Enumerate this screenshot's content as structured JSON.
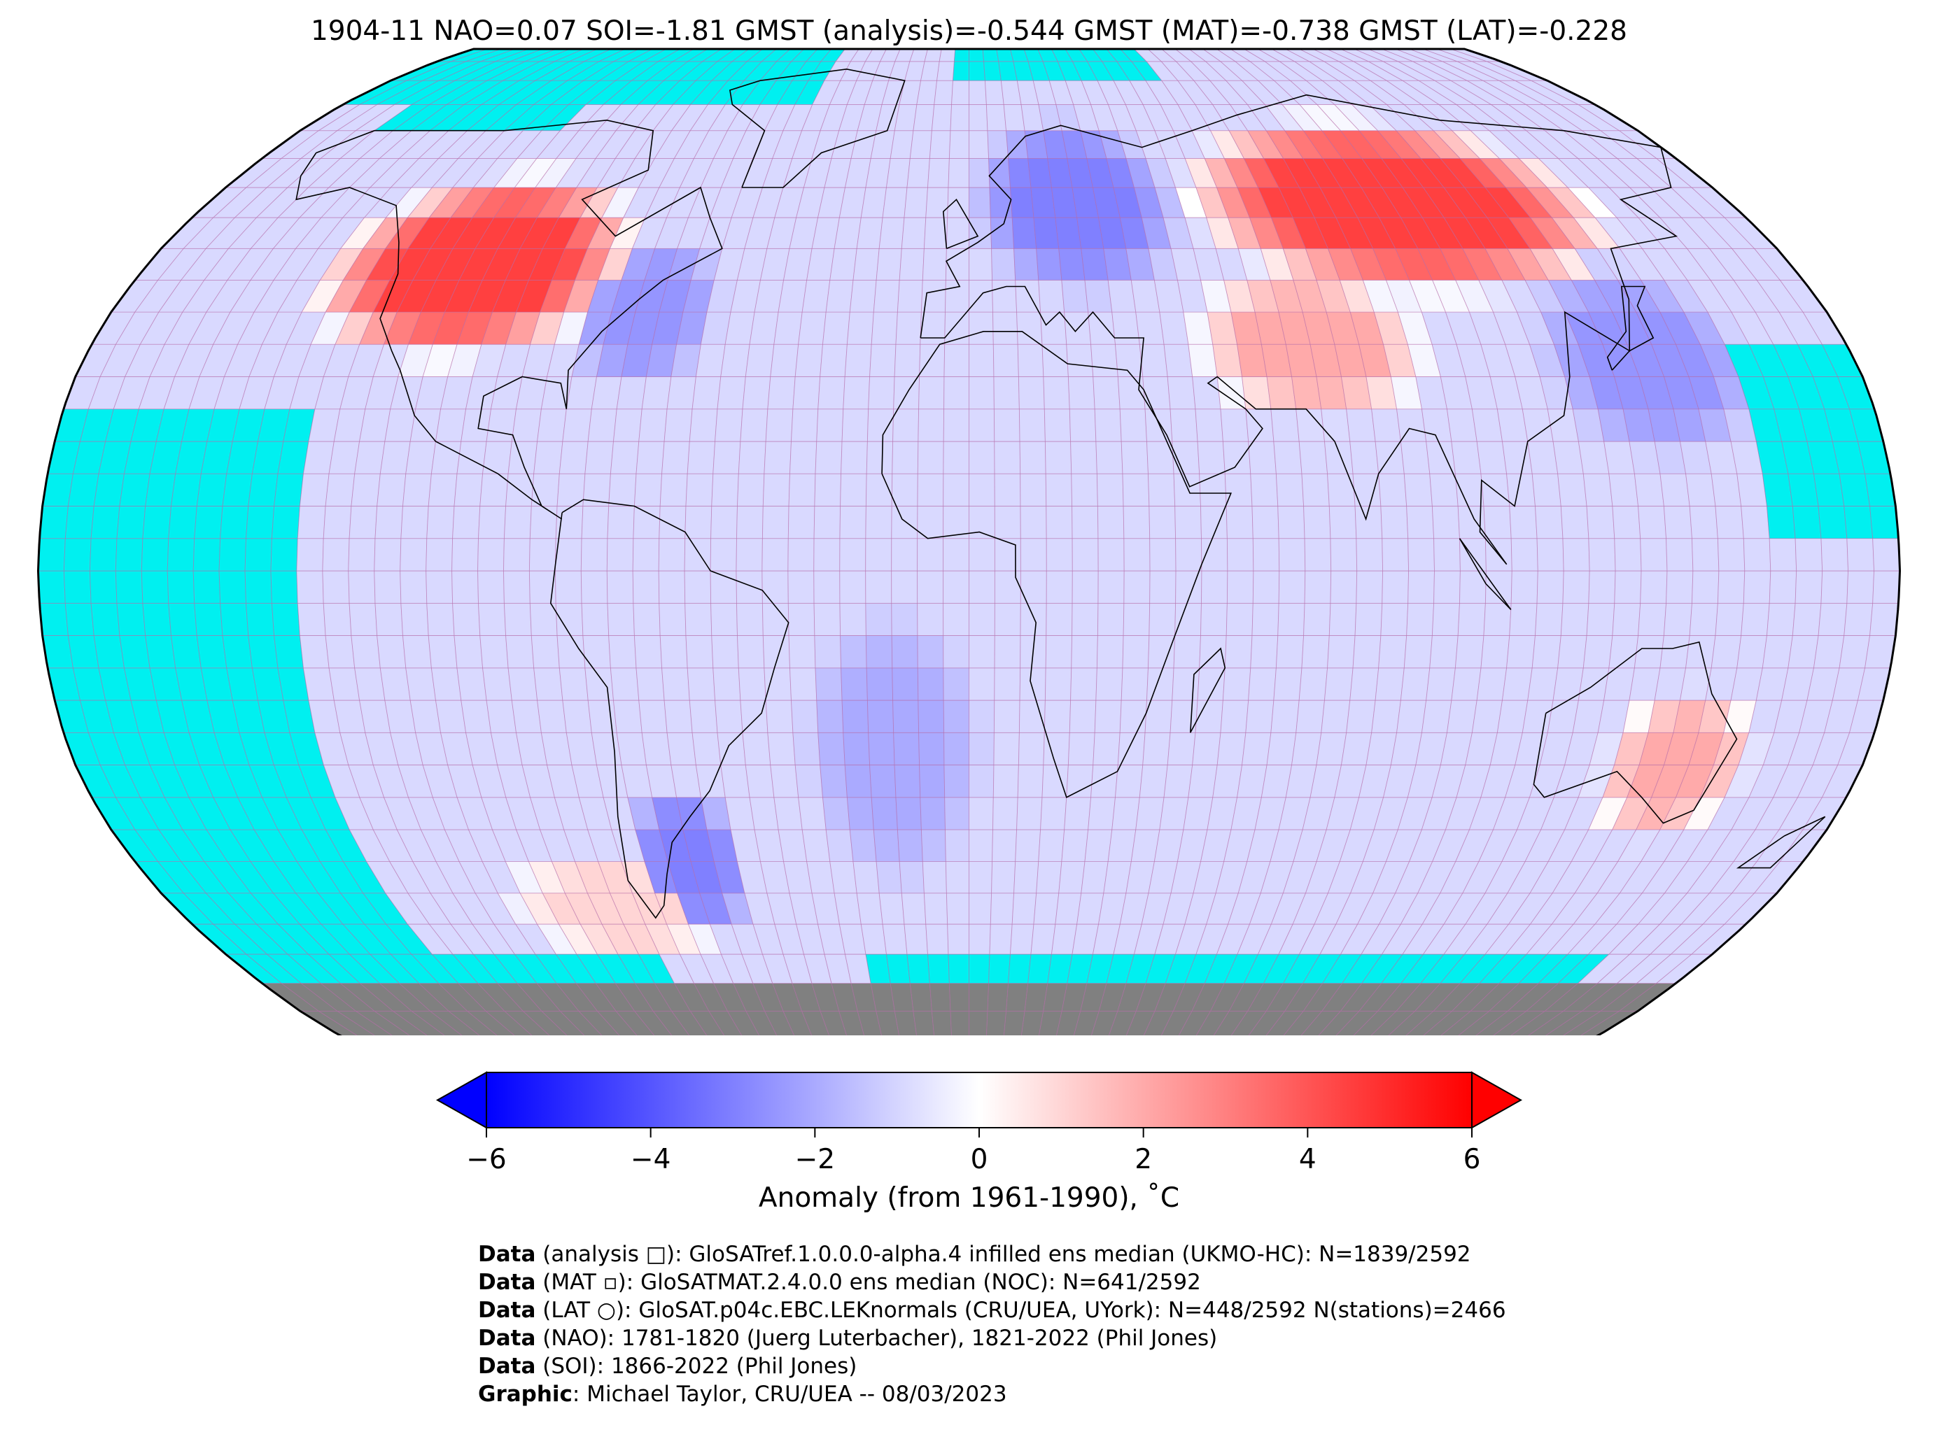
{
  "title": "1904-11 NAO=0.07 SOI=-1.81 GMST (analysis)=-0.544 GMST (MAT)=-0.738 GMST (LAT)=-0.228",
  "colors": {
    "ocean_missing": "#00f0f0",
    "antarctica": "#808080",
    "cold": "#0000ff",
    "warm": "#ff0000",
    "neutral": "#ffffff",
    "grid": "#b46aa8"
  },
  "chart_data": {
    "type": "heatmap",
    "projection": "Robinson",
    "grid_resolution_deg": 5,
    "colorbar": {
      "min": -6,
      "max": 6,
      "ticks": [
        -6,
        -4,
        -2,
        0,
        2,
        4,
        6
      ],
      "tick_labels": [
        "−6",
        "−4",
        "−2",
        "0",
        "2",
        "4",
        "6"
      ],
      "extend": "both",
      "label": "Anomaly (from 1961-1990), ˚C"
    },
    "anomaly_regions": [
      {
        "lon": [
          -135,
          -80
        ],
        "lat": [
          35,
          60
        ],
        "value": 4.5
      },
      {
        "lon": [
          -80,
          -55
        ],
        "lat": [
          30,
          50
        ],
        "value": -2.5
      },
      {
        "lon": [
          60,
          140
        ],
        "lat": [
          45,
          70
        ],
        "value": 4.5
      },
      {
        "lon": [
          50,
          90
        ],
        "lat": [
          25,
          45
        ],
        "value": 2.0
      },
      {
        "lon": [
          5,
          45
        ],
        "lat": [
          45,
          70
        ],
        "value": -3.0
      },
      {
        "lon": [
          120,
          155
        ],
        "lat": [
          20,
          45
        ],
        "value": -2.5
      },
      {
        "lon": [
          130,
          155
        ],
        "lat": [
          -40,
          -20
        ],
        "value": 2.0
      },
      {
        "lon": [
          -70,
          -50
        ],
        "lat": [
          -55,
          -35
        ],
        "value": -3.0
      },
      {
        "lon": [
          -30,
          0
        ],
        "lat": [
          -45,
          -10
        ],
        "value": -2.0
      },
      {
        "lon": [
          -100,
          -60
        ],
        "lat": [
          -60,
          -45
        ],
        "value": 1.0
      }
    ],
    "missing_regions": [
      {
        "lon": [
          -180,
          -130
        ],
        "lat": [
          -60,
          25
        ]
      },
      {
        "lon": [
          -180,
          -75
        ],
        "lat": [
          -75,
          -60
        ]
      },
      {
        "lon": [
          -25,
          155
        ],
        "lat": [
          -70,
          -60
        ]
      },
      {
        "lon": [
          155,
          180
        ],
        "lat": [
          5,
          35
        ]
      },
      {
        "lon": [
          -180,
          -45
        ],
        "lat": [
          75,
          90
        ]
      },
      {
        "lon": [
          -5,
          60
        ],
        "lat": [
          80,
          90
        ]
      },
      {
        "lon": [
          -160,
          -110
        ],
        "lat": [
          70,
          80
        ]
      }
    ]
  },
  "colorbar_label": "Anomaly (from 1961-1990), ˚C",
  "credits": [
    {
      "bold": "Data",
      "text": " (analysis □): GloSATref.1.0.0.0-alpha.4 infilled ens median (UKMO-HC): N=1839/2592"
    },
    {
      "bold": "Data",
      "text": " (MAT ▫): GloSATMAT.2.4.0.0 ens median (NOC): N=641/2592"
    },
    {
      "bold": "Data",
      "text": " (LAT ○): GloSAT.p04c.EBC.LEKnormals (CRU/UEA, UYork): N=448/2592 N(stations)=2466"
    },
    {
      "bold": "Data",
      "text": " (NAO): 1781-1820 (Juerg Luterbacher), 1821-2022 (Phil Jones)"
    },
    {
      "bold": "Data",
      "text": " (SOI): 1866-2022 (Phil Jones)"
    },
    {
      "bold": "Graphic",
      "text": ": Michael Taylor, CRU/UEA -- 08/03/2023"
    }
  ]
}
